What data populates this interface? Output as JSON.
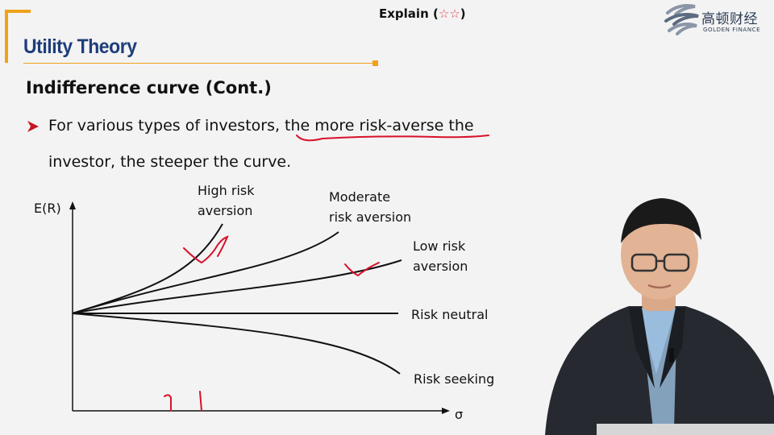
{
  "header": {
    "explain_label": "Explain",
    "explain_open": "(",
    "explain_stars": "☆☆",
    "explain_close": ")",
    "logo_cn": "高顿财经",
    "logo_en": "GOLDEN FINANCE"
  },
  "slide": {
    "title": "Utility Theory",
    "subheading": "Indifference curve (Cont.)",
    "bullet_line1": "For various types of investors, the more risk-averse the",
    "bullet_line2": "investor, the steeper the curve.",
    "accent_color": "#f0a21a",
    "title_color": "#1e3d7a",
    "annotation_color": "#d8112a"
  },
  "diagram": {
    "y_axis_label": "E(R)",
    "x_axis_label": "σ",
    "curves": [
      {
        "id": "high",
        "line1": "High risk",
        "line2": "aversion"
      },
      {
        "id": "moderate",
        "line1": "Moderate",
        "line2": "risk aversion"
      },
      {
        "id": "low",
        "line1": "Low risk",
        "line2": "aversion"
      },
      {
        "id": "neutral",
        "line1": "Risk neutral"
      },
      {
        "id": "seeking",
        "line1": "Risk seeking"
      }
    ]
  }
}
